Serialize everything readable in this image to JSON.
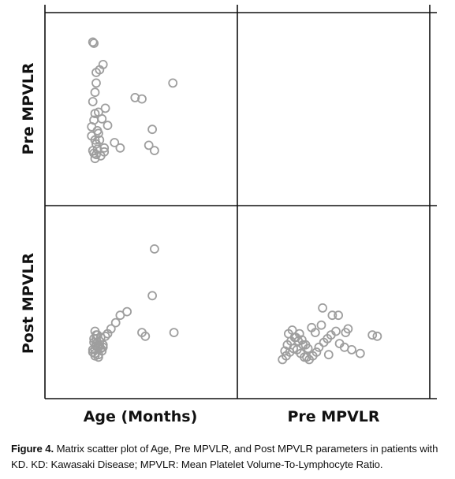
{
  "chart_data": {
    "type": "scatter-matrix",
    "variables": [
      "Age (Months)",
      "Pre MPVLR",
      "Post MPVLR"
    ],
    "row_labels": [
      "Pre MPVLR",
      "Post MPVLR"
    ],
    "col_labels": [
      "Age (Months)",
      "Pre MPVLR"
    ],
    "grid": false,
    "panels": [
      {
        "row": "Pre MPVLR",
        "col": "Age (Months)",
        "x": [
          0.17,
          0.18,
          0.26,
          0.23,
          0.2,
          0.2,
          0.19,
          0.17,
          0.28,
          0.19,
          0.18,
          0.16,
          0.21,
          0.22,
          0.16,
          0.19,
          0.23,
          0.2,
          0.27,
          0.17,
          0.18,
          0.2,
          0.21,
          0.24,
          0.27,
          0.19,
          0.36,
          0.41,
          0.54,
          0.6,
          0.66,
          0.71,
          0.69,
          0.87,
          0.22,
          0.25,
          0.3
        ],
        "y": [
          0.98,
          0.97,
          0.81,
          0.77,
          0.75,
          0.67,
          0.6,
          0.53,
          0.48,
          0.44,
          0.39,
          0.34,
          0.31,
          0.29,
          0.27,
          0.24,
          0.24,
          0.21,
          0.18,
          0.16,
          0.14,
          0.13,
          0.17,
          0.12,
          0.15,
          0.1,
          0.22,
          0.18,
          0.56,
          0.55,
          0.2,
          0.16,
          0.32,
          0.67,
          0.45,
          0.4,
          0.35
        ]
      },
      {
        "row": "Post MPVLR",
        "col": "Age (Months)",
        "x": [
          0.19,
          0.21,
          0.22,
          0.18,
          0.2,
          0.23,
          0.26,
          0.24,
          0.17,
          0.19,
          0.22,
          0.25,
          0.2,
          0.18,
          0.21,
          0.23,
          0.17,
          0.19,
          0.22,
          0.28,
          0.3,
          0.33,
          0.37,
          0.41,
          0.47,
          0.6,
          0.63,
          0.69,
          0.71,
          0.88,
          0.19,
          0.21,
          0.24,
          0.2,
          0.26
        ],
        "y": [
          0.18,
          0.2,
          0.22,
          0.24,
          0.27,
          0.25,
          0.22,
          0.19,
          0.16,
          0.13,
          0.14,
          0.17,
          0.3,
          0.27,
          0.24,
          0.21,
          0.18,
          0.15,
          0.12,
          0.29,
          0.31,
          0.35,
          0.4,
          0.46,
          0.49,
          0.32,
          0.29,
          0.62,
          1.0,
          0.32,
          0.33,
          0.3,
          0.28,
          0.23,
          0.2
        ]
      },
      {
        "row": "Post MPVLR",
        "col": "Pre MPVLR",
        "x": [
          0.06,
          0.09,
          0.12,
          0.15,
          0.1,
          0.13,
          0.17,
          0.2,
          0.22,
          0.25,
          0.18,
          0.21,
          0.24,
          0.28,
          0.31,
          0.34,
          0.27,
          0.23,
          0.19,
          0.16,
          0.11,
          0.14,
          0.08,
          0.36,
          0.4,
          0.43,
          0.46,
          0.5,
          0.53,
          0.57,
          0.6,
          0.63,
          0.47,
          0.52,
          0.3,
          0.33,
          0.38,
          0.58,
          0.8,
          0.84,
          0.7,
          0.39,
          0.44,
          0.26
        ],
        "y": [
          0.1,
          0.13,
          0.16,
          0.19,
          0.22,
          0.25,
          0.28,
          0.31,
          0.26,
          0.22,
          0.18,
          0.15,
          0.12,
          0.1,
          0.13,
          0.16,
          0.19,
          0.22,
          0.25,
          0.28,
          0.31,
          0.34,
          0.17,
          0.2,
          0.24,
          0.27,
          0.3,
          0.33,
          0.23,
          0.2,
          0.35,
          0.18,
          0.46,
          0.46,
          0.36,
          0.32,
          0.38,
          0.32,
          0.3,
          0.29,
          0.15,
          0.52,
          0.14,
          0.12
        ]
      }
    ]
  },
  "caption": {
    "label": "Figure 4.",
    "text": " Matrix scatter plot of Age, Pre MPVLR, and Post MPVLR parameters in patients with KD. KD: Kawasaki Disease; MPVLR: Mean Platelet Volume-To-Lymphocyte Ratio."
  },
  "colors": {
    "marker": "#9e9e9e",
    "frame": "#111111"
  }
}
